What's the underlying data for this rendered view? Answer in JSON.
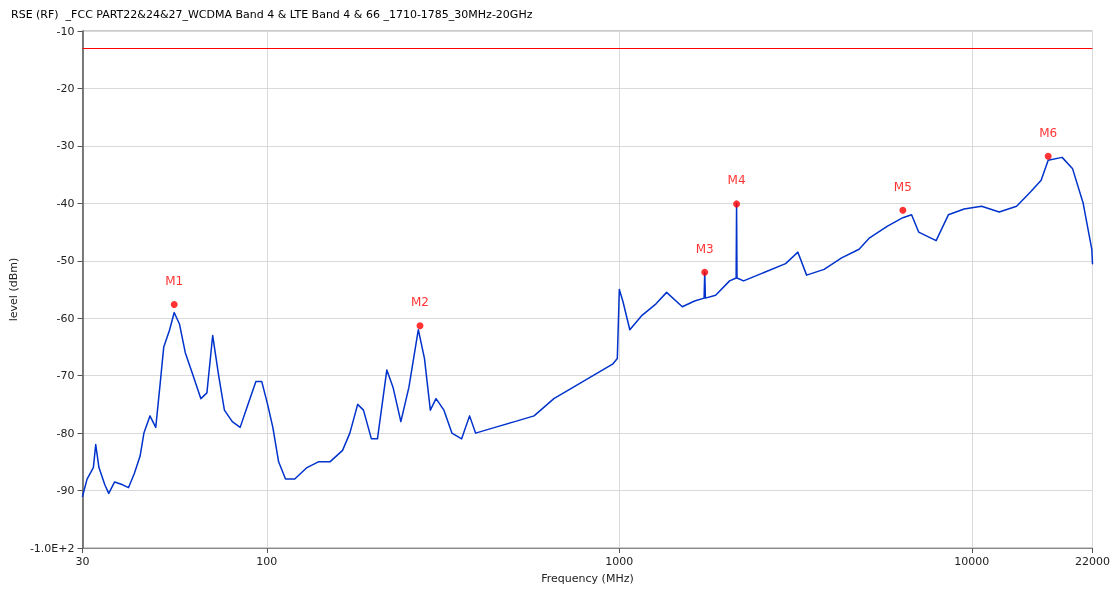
{
  "chart_data": {
    "type": "line",
    "title": "RSE (RF)  _FCC PART22&24&27_WCDMA Band 4 & LTE Band 4 & 66 _1710-1785_30MHz-20GHz",
    "xlabel": "Frequency (MHz)",
    "ylabel": "level (dBm)",
    "log": "x",
    "grid": true,
    "xlim": [
      30,
      22000
    ],
    "xticks": [
      30,
      100,
      1000,
      10000,
      22000
    ],
    "ylim": [
      -100,
      -10
    ],
    "yticks": [
      -10,
      -20,
      -30,
      -40,
      -50,
      -60,
      -70,
      -80,
      -90,
      {
        "value": -100,
        "label": "-1.0E+2"
      }
    ],
    "ref_lines": [
      {
        "axis": "y",
        "value": -13,
        "label": null,
        "color": "#ff0000"
      }
    ],
    "series": [
      {
        "color": "#0033cc",
        "marker": "none",
        "line_style": "solid",
        "x": [
          30,
          30.9,
          32.2,
          32.7,
          33.4,
          34.7,
          35.6,
          37.0,
          39.0,
          40.5,
          42.1,
          43.7,
          44.8,
          46.6,
          48.4,
          49.7,
          51.0,
          53.0,
          54.6,
          56.5,
          58.7,
          61.8,
          65.0,
          67.6,
          70.2,
          73.0,
          75.8,
          79.8,
          84.0,
          88.4,
          93.1,
          96.7,
          100.5,
          104,
          108,
          113,
          120,
          130,
          140,
          151,
          164,
          172,
          181,
          188,
          198,
          206,
          219,
          228,
          240,
          253,
          269,
          280,
          291,
          302,
          318,
          335,
          357,
          376,
          391,
          444,
          505,
          573,
          652,
          741,
          842,
          957,
          987,
          1000,
          1023,
          1071,
          1160,
          1271,
          1362,
          1509,
          1635,
          1740,
          1747,
          1755,
          1876,
          2055,
          2145,
          2151,
          2157,
          2252,
          2583,
          2963,
          3210,
          3399,
          3810,
          4272,
          4788,
          5129,
          5751,
          6374,
          6748,
          7067,
          7921,
          8580,
          9511,
          10660,
          11960,
          13400,
          14690,
          15730,
          16470,
          18040,
          19320,
          20700,
          21900,
          22000
        ],
        "values": [
          -91,
          -88,
          -86,
          -82,
          -86,
          -89,
          -90.5,
          -88.5,
          -89,
          -89.5,
          -87,
          -84,
          -80,
          -77,
          -79,
          -72,
          -65,
          -62,
          -59,
          -61,
          -66,
          -70,
          -74,
          -73,
          -63,
          -70,
          -76,
          -78,
          -79,
          -75,
          -71,
          -71,
          -75,
          -79,
          -85,
          -88,
          -88,
          -86,
          -85,
          -85,
          -83,
          -80,
          -75,
          -76,
          -81,
          -81,
          -69,
          -72,
          -78,
          -72,
          -62,
          -67,
          -76,
          -74,
          -76,
          -80,
          -81,
          -77,
          -80,
          -79,
          -78,
          -77,
          -74,
          -72,
          -70,
          -68,
          -67,
          -55,
          -57,
          -62,
          -59.5,
          -57.5,
          -55.5,
          -58,
          -57,
          -56.5,
          -52,
          -56.5,
          -56,
          -53.5,
          -53,
          -40.1,
          -53,
          -53.5,
          -52,
          -50.5,
          -48.5,
          -52.5,
          -51.5,
          -49.5,
          -48,
          -46,
          -44,
          -42.5,
          -42,
          -45,
          -46.5,
          -42,
          -41,
          -40.5,
          -41.5,
          -40.5,
          -38,
          -36,
          -32.5,
          -32,
          -34,
          -40,
          -48,
          -50.5
        ]
      },
      {
        "type": "scatter",
        "color": "#ff0000",
        "marker": "circle",
        "x": [
          54.6,
          272,
          1747,
          2151,
          6374,
          16470
        ],
        "values": [
          -57.6,
          -61.3,
          -52,
          -40.1,
          -41.2,
          -31.8
        ],
        "value_labels": [
          "M1",
          "M2",
          "M3",
          "M4",
          "M5",
          "M6"
        ]
      }
    ]
  }
}
